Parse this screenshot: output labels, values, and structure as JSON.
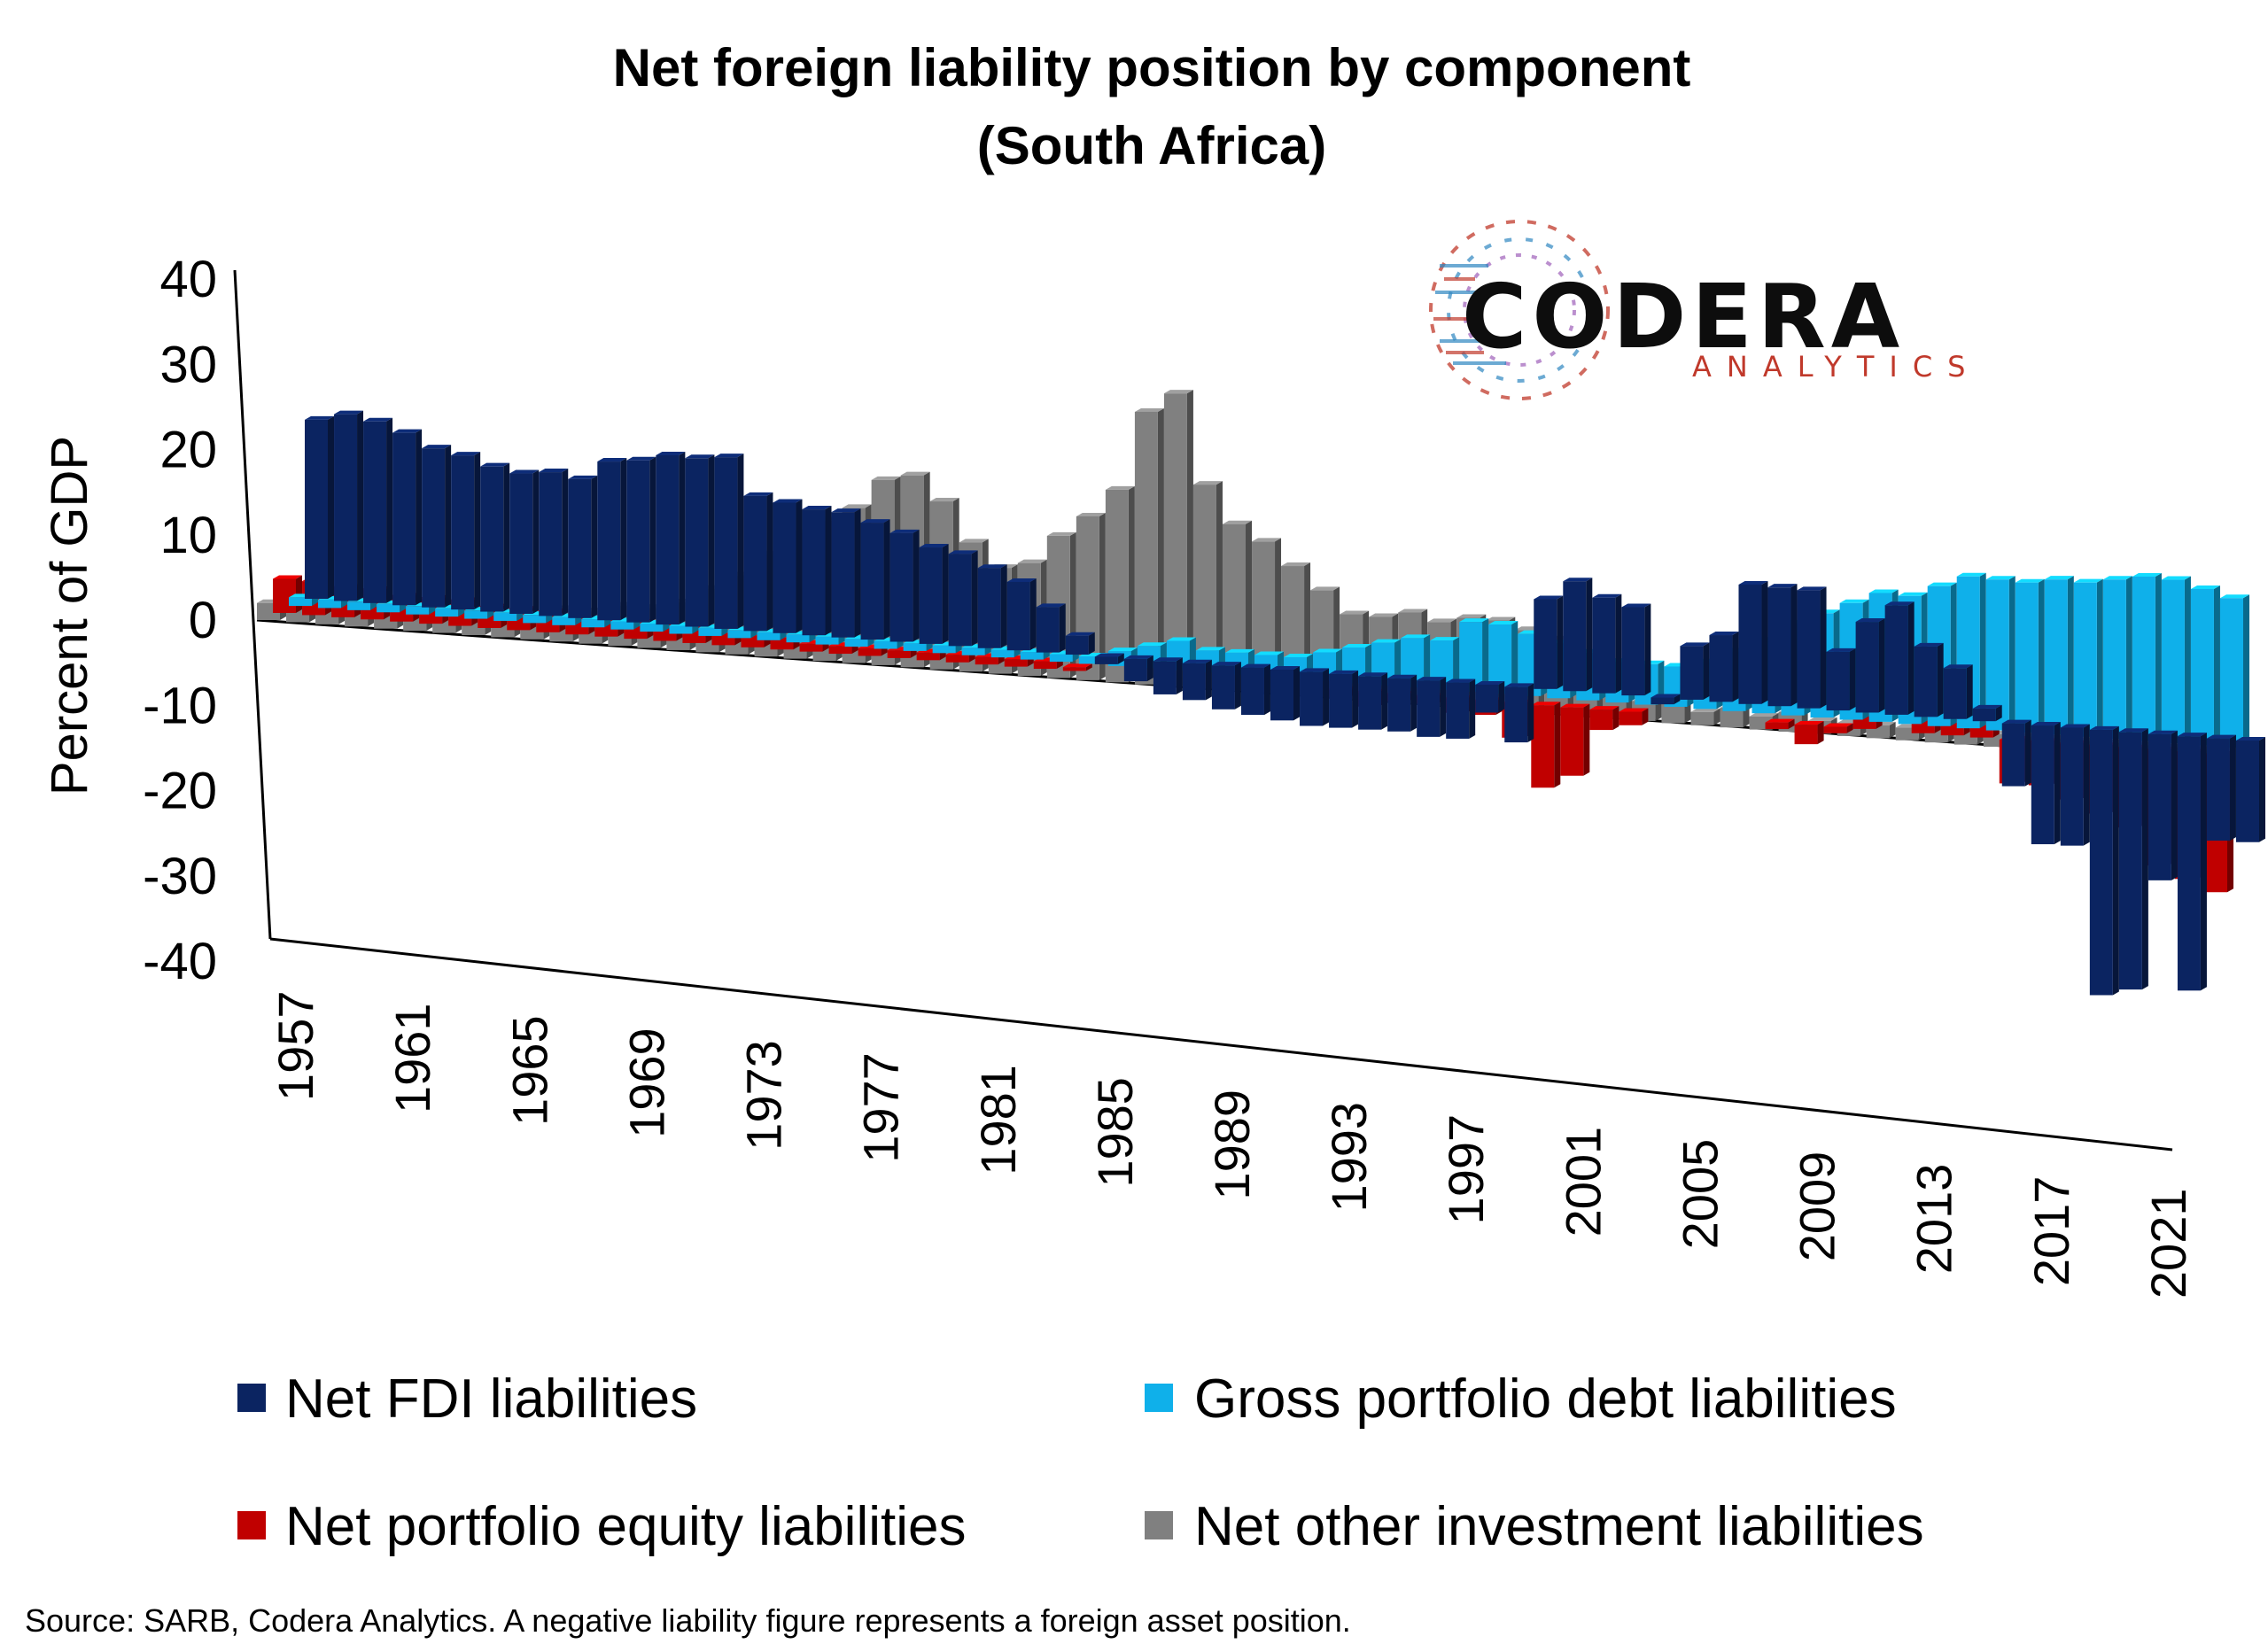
{
  "chart_data": {
    "type": "bar",
    "title": "Net foreign liability position by component",
    "subtitle": "(South Africa)",
    "ylabel": "Percent of GDP",
    "ylim": [
      -40,
      40
    ],
    "yticks": [
      40,
      30,
      20,
      10,
      0,
      -10,
      -20,
      -30,
      -40
    ],
    "ytick_labels": [
      "40",
      "30",
      "20",
      "10",
      "0",
      "-10",
      "-20",
      "-30",
      "-40"
    ],
    "x_tick_labels": [
      "1957",
      "1961",
      "1965",
      "1969",
      "1973",
      "1977",
      "1981",
      "1985",
      "1989",
      "1993",
      "1997",
      "2001",
      "2005",
      "2009",
      "2013",
      "2017",
      "2021"
    ],
    "categories": [
      1956,
      1957,
      1958,
      1959,
      1960,
      1961,
      1962,
      1963,
      1964,
      1965,
      1966,
      1967,
      1968,
      1969,
      1970,
      1971,
      1972,
      1973,
      1974,
      1975,
      1976,
      1977,
      1978,
      1979,
      1980,
      1981,
      1982,
      1983,
      1984,
      1985,
      1986,
      1987,
      1988,
      1989,
      1990,
      1991,
      1992,
      1993,
      1994,
      1995,
      1996,
      1997,
      1998,
      1999,
      2000,
      2001,
      2002,
      2003,
      2004,
      2005,
      2006,
      2007,
      2008,
      2009,
      2010,
      2011,
      2012,
      2013,
      2014,
      2015,
      2016,
      2017,
      2018,
      2019,
      2020,
      2021,
      2022
    ],
    "legend_position": "bottom",
    "series": [
      {
        "name": "Net FDI liabilities",
        "color": "#0b2461",
        "values": [
          21,
          22,
          21.5,
          20.5,
          19,
          18.5,
          17.5,
          17,
          17.5,
          17,
          19.5,
          20,
          21,
          21,
          21.5,
          17,
          16.5,
          16,
          16,
          15,
          14,
          12.5,
          12,
          10.5,
          9,
          6,
          2.5,
          -1,
          -3,
          -4.5,
          -5,
          -6,
          -6.5,
          -7,
          -7.5,
          -7.5,
          -7.5,
          -7.5,
          -8,
          -8,
          -4,
          -8,
          13,
          16,
          14,
          13,
          -1,
          8,
          10,
          18,
          18,
          18,
          9,
          14,
          17,
          11,
          8,
          2,
          -10,
          -19,
          -19,
          -43,
          -42,
          -24,
          -42,
          -17,
          -17
        ]
      },
      {
        "name": "Gross portfolio debt liabilities",
        "color": "#0fb0ea",
        "values": [
          1,
          1,
          1,
          1,
          1,
          1,
          1,
          1,
          1,
          1,
          1,
          1,
          1,
          1,
          1,
          1,
          1,
          1,
          1,
          1,
          1,
          1,
          1,
          1,
          1,
          1,
          1,
          1,
          2,
          3,
          4,
          3,
          3,
          3,
          3,
          4,
          5,
          6,
          7,
          7,
          10,
          10,
          9,
          8,
          7,
          6,
          6,
          6,
          7,
          9,
          11,
          14,
          16,
          18,
          20,
          20,
          22,
          24,
          24,
          24,
          25,
          25,
          26,
          27,
          27,
          26,
          25
        ]
      },
      {
        "name": "Net portfolio equity liabilities",
        "color": "#c00000",
        "values": [
          4,
          4,
          3.5,
          3.5,
          3,
          3,
          3,
          2.5,
          2.5,
          2.5,
          2,
          2,
          2,
          2,
          2,
          1.5,
          1.5,
          1.5,
          1,
          1,
          1,
          1,
          1,
          1,
          1,
          1,
          1,
          0.5,
          0,
          0,
          0,
          0,
          0,
          0,
          0,
          0,
          -1,
          -2,
          -1,
          -1,
          -2,
          -2,
          -5,
          -12,
          -10,
          -3,
          -2,
          0,
          0,
          0,
          0,
          -1,
          -3,
          -1,
          2,
          0,
          2,
          2,
          2,
          -7,
          -7,
          -9,
          -11,
          -13,
          -19,
          -21,
          -23
        ]
      },
      {
        "name": "Net other investment liabilities",
        "color": "#808080",
        "values": [
          2,
          2,
          2,
          2,
          2,
          3,
          3,
          3,
          3,
          3,
          4,
          4,
          5,
          5,
          6,
          8,
          10,
          13,
          16,
          18,
          20,
          24,
          25,
          22,
          17,
          14,
          15,
          19,
          22,
          26,
          37,
          40,
          28,
          23,
          21,
          18,
          15,
          12,
          12,
          13,
          12,
          13,
          13,
          12,
          11,
          8,
          5,
          3,
          3,
          2,
          3,
          2,
          3,
          2,
          2,
          2,
          2,
          2,
          2,
          2,
          2,
          2,
          2,
          2,
          2,
          2,
          2
        ]
      }
    ]
  },
  "legend": {
    "items": [
      {
        "label": "Net FDI liabilities",
        "color": "#0b2461"
      },
      {
        "label": "Gross portfolio debt liabilities",
        "color": "#0fb0ea"
      },
      {
        "label": "Net portfolio equity liabilities",
        "color": "#c00000"
      },
      {
        "label": "Net other investment liabilities",
        "color": "#808080"
      }
    ]
  },
  "logo": {
    "name": "CODERA",
    "sub": "ANALYTICS"
  },
  "source": "Source: SARB, Codera Analytics. A negative liability figure represents a foreign asset position."
}
